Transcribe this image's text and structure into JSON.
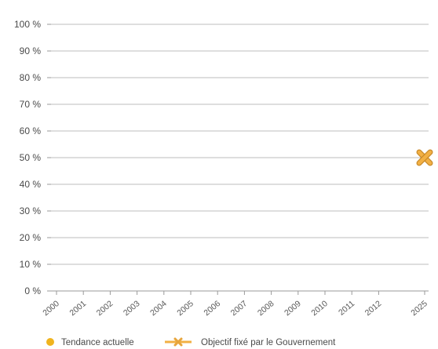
{
  "chart_data": {
    "type": "scatter",
    "x_categories": [
      "2000",
      "2001",
      "2002",
      "2003",
      "2004",
      "2005",
      "2006",
      "2007",
      "2008",
      "2009",
      "2010",
      "2011",
      "2012",
      "2025"
    ],
    "y_ticks": [
      "0 %",
      "10 %",
      "20 %",
      "30 %",
      "40 %",
      "50 %",
      "60 %",
      "70 %",
      "80 %",
      "90 %",
      "100 %"
    ],
    "ylim": [
      0,
      100
    ],
    "grid": true,
    "legend_position": "bottom-left",
    "series": [
      {
        "name": "Tendance actuelle",
        "marker": "circle",
        "color": "#f0b41e",
        "points": []
      },
      {
        "name": "Objectif fixé par le Gouvernement",
        "marker": "x",
        "color": "#f2b044",
        "points": [
          {
            "x": "2025",
            "y": 50
          }
        ]
      }
    ]
  }
}
